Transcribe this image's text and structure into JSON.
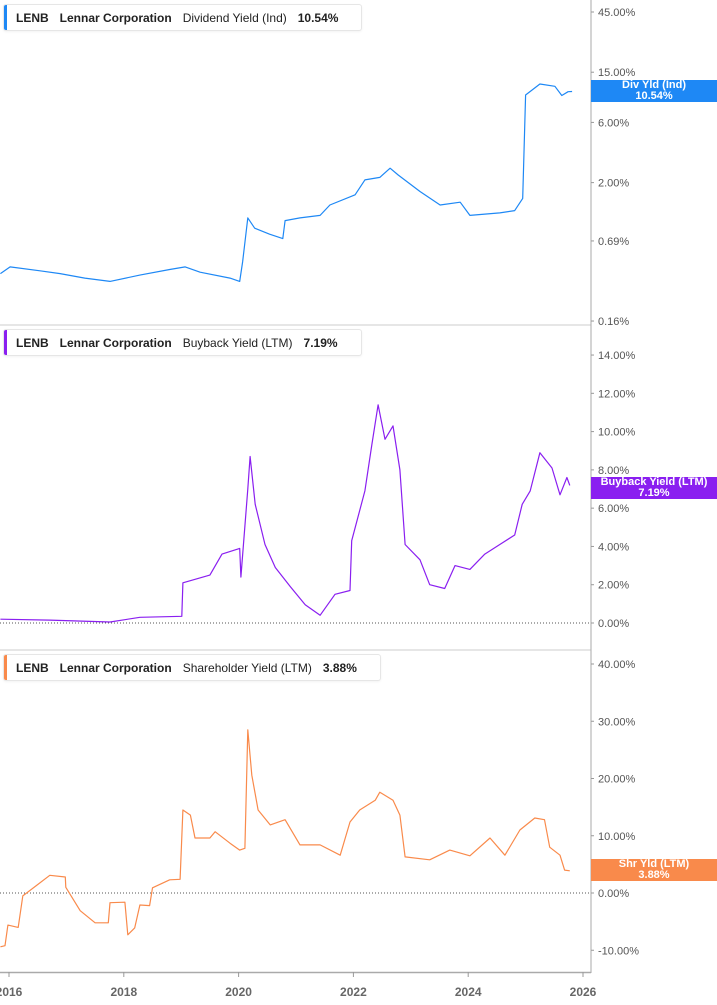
{
  "x_axis": {
    "ticks": [
      "2016",
      "2018",
      "2020",
      "2022",
      "2024",
      "2026"
    ],
    "range": [
      2015.85,
      2026.1
    ]
  },
  "chart_data": [
    {
      "type": "line",
      "ticker": "LENB",
      "company": "Lennar Corporation",
      "metric": "Dividend Yield (Ind)",
      "current": "10.54%",
      "tag_label": "Div Yld (Ind)",
      "tag_value": "10.54%",
      "color": "#1e88f5",
      "scale": "log",
      "ylim": [
        0.16,
        45
      ],
      "yticks": [
        "45.00%",
        "15.00%",
        "6.00%",
        "2.00%",
        "0.69%",
        "0.16%"
      ],
      "ytick_values": [
        45,
        15,
        6,
        2,
        0.69,
        0.16
      ],
      "x": [
        2015.85,
        2016.02,
        2016.54,
        2016.89,
        2017.32,
        2017.76,
        2018.28,
        2018.8,
        2019.07,
        2019.33,
        2019.85,
        2020.02,
        2020.07,
        2020.16,
        2020.28,
        2020.54,
        2020.77,
        2020.81,
        2021.07,
        2021.42,
        2021.59,
        2022.03,
        2022.2,
        2022.46,
        2022.64,
        2022.78,
        2023.16,
        2023.51,
        2023.86,
        2024.03,
        2024.55,
        2024.81,
        2024.95,
        2025.0,
        2025.25,
        2025.51,
        2025.63,
        2025.74,
        2025.81
      ],
      "y": [
        0.38,
        0.43,
        0.4,
        0.38,
        0.35,
        0.33,
        0.37,
        0.41,
        0.43,
        0.39,
        0.35,
        0.33,
        0.47,
        1.05,
        0.87,
        0.78,
        0.72,
        1.0,
        1.05,
        1.1,
        1.33,
        1.6,
        2.1,
        2.2,
        2.6,
        2.3,
        1.7,
        1.33,
        1.4,
        1.1,
        1.15,
        1.2,
        1.5,
        9.9,
        12.1,
        11.6,
        9.8,
        10.5,
        10.54
      ]
    },
    {
      "type": "line",
      "ticker": "LENB",
      "company": "Lennar Corporation",
      "metric": "Buyback Yield (LTM)",
      "current": "7.19%",
      "tag_label": "Buyback Yield (LTM)",
      "tag_value": "7.19%",
      "color": "#8a1ff0",
      "scale": "linear",
      "ylim": [
        -0.5,
        15.5
      ],
      "yticks": [
        "14.00%",
        "12.00%",
        "10.00%",
        "8.00%",
        "6.00%",
        "4.00%",
        "2.00%",
        "0.00%"
      ],
      "ytick_values": [
        14,
        12,
        10,
        8,
        6,
        4,
        2,
        0
      ],
      "x": [
        2015.85,
        2016.71,
        2017.76,
        2018.28,
        2019.01,
        2019.03,
        2019.5,
        2019.71,
        2020.02,
        2020.04,
        2020.16,
        2020.2,
        2020.29,
        2020.46,
        2020.64,
        2020.9,
        2021.16,
        2021.42,
        2021.68,
        2021.94,
        2021.97,
        2022.2,
        2022.32,
        2022.43,
        2022.55,
        2022.69,
        2022.81,
        2022.9,
        2023.16,
        2023.33,
        2023.59,
        2023.77,
        2024.03,
        2024.29,
        2024.55,
        2024.81,
        2024.94,
        2025.08,
        2025.25,
        2025.46,
        2025.6,
        2025.72,
        2025.77
      ],
      "y": [
        0.2,
        0.15,
        0.05,
        0.3,
        0.35,
        2.1,
        2.5,
        3.6,
        3.9,
        2.4,
        7.0,
        8.7,
        6.2,
        4.1,
        2.9,
        1.9,
        0.95,
        0.4,
        1.5,
        1.7,
        4.3,
        6.9,
        9.3,
        11.4,
        9.6,
        10.3,
        8.0,
        4.1,
        3.3,
        2.0,
        1.8,
        3.0,
        2.8,
        3.6,
        4.1,
        4.6,
        6.2,
        6.9,
        8.9,
        8.1,
        6.7,
        7.6,
        7.19
      ]
    },
    {
      "type": "line",
      "ticker": "LENB",
      "company": "Lennar Corporation",
      "metric": "Shareholder Yield (LTM)",
      "current": "3.88%",
      "tag_label": "Shr Yld (LTM)",
      "tag_value": "3.88%",
      "color": "#f98a4b",
      "scale": "linear",
      "ylim": [
        -13.5,
        44
      ],
      "yticks": [
        "40.00%",
        "30.00%",
        "20.00%",
        "10.00%",
        "0.00%",
        "-10.00%"
      ],
      "ytick_values": [
        40,
        30,
        20,
        10,
        0,
        -10
      ],
      "x": [
        2015.85,
        2015.93,
        2015.98,
        2016.16,
        2016.24,
        2016.49,
        2016.71,
        2016.98,
        2016.99,
        2017.24,
        2017.5,
        2017.73,
        2017.76,
        2018.02,
        2018.07,
        2018.19,
        2018.28,
        2018.45,
        2018.5,
        2018.8,
        2018.98,
        2019.03,
        2019.16,
        2019.24,
        2019.5,
        2019.59,
        2019.85,
        2020.02,
        2020.11,
        2020.16,
        2020.23,
        2020.34,
        2020.55,
        2020.81,
        2021.07,
        2021.42,
        2021.77,
        2021.94,
        2022.11,
        2022.38,
        2022.46,
        2022.69,
        2022.81,
        2022.9,
        2023.33,
        2023.68,
        2024.03,
        2024.38,
        2024.64,
        2024.9,
        2025.16,
        2025.33,
        2025.42,
        2025.6,
        2025.68,
        2025.77
      ],
      "y": [
        -9.4,
        -9.2,
        -5.6,
        -6.0,
        -0.5,
        1.4,
        3.1,
        2.8,
        1.0,
        -3.1,
        -5.2,
        -5.2,
        -1.7,
        -1.6,
        -7.3,
        -6.1,
        -2.1,
        -2.2,
        0.9,
        2.3,
        2.4,
        14.5,
        13.6,
        9.6,
        9.6,
        10.7,
        8.7,
        7.5,
        7.8,
        28.5,
        20.6,
        14.5,
        11.9,
        12.8,
        8.4,
        8.4,
        6.6,
        12.4,
        14.5,
        16.2,
        17.6,
        16.2,
        13.6,
        6.3,
        5.8,
        7.5,
        6.5,
        9.6,
        6.6,
        11.0,
        13.1,
        12.8,
        8.0,
        6.6,
        4.0,
        3.88
      ]
    }
  ]
}
